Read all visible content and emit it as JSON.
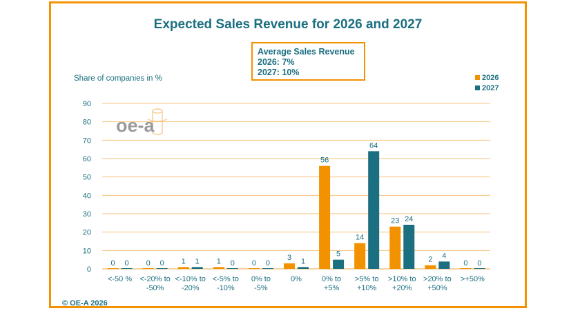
{
  "title": "Expected Sales Revenue for 2026 and 2027",
  "average_box": {
    "heading": "Average Sales Revenue",
    "line_2026": "2026: 7%",
    "line_2027": "2027: 10%"
  },
  "logo_text": "oe-a",
  "copyright": "© OE-A 2026",
  "colors": {
    "accent": "#f39200",
    "series_2026": "#f39200",
    "series_2027": "#1b6f80",
    "text": "#1b6f80",
    "grid": "#f6c17a"
  },
  "chart_data": {
    "type": "bar",
    "title": "Expected Sales Revenue for 2026 and 2027",
    "ylabel": "Share of companies in %",
    "xlabel": "",
    "ylim": [
      0,
      90
    ],
    "yticks": [
      0,
      10,
      20,
      30,
      40,
      50,
      60,
      70,
      80,
      90
    ],
    "grid": true,
    "legend": "top-right",
    "categories": [
      [
        "<-50 %"
      ],
      [
        "<-20% to",
        "-50%"
      ],
      [
        "<-10% to",
        "-20%"
      ],
      [
        "<-5% to",
        "-10%"
      ],
      [
        "0% to",
        "-5%"
      ],
      [
        "0%"
      ],
      [
        "0% to",
        "+5%"
      ],
      [
        ">5% to",
        "+10%"
      ],
      [
        ">10% to",
        "+20%"
      ],
      [
        ">20% to",
        "+50%"
      ],
      [
        ">+50%"
      ]
    ],
    "series": [
      {
        "name": "2026",
        "values": [
          0,
          0,
          1,
          1,
          0,
          3,
          56,
          14,
          23,
          2,
          0
        ]
      },
      {
        "name": "2027",
        "values": [
          0,
          0,
          1,
          0,
          0,
          1,
          5,
          64,
          24,
          4,
          0
        ]
      }
    ]
  }
}
